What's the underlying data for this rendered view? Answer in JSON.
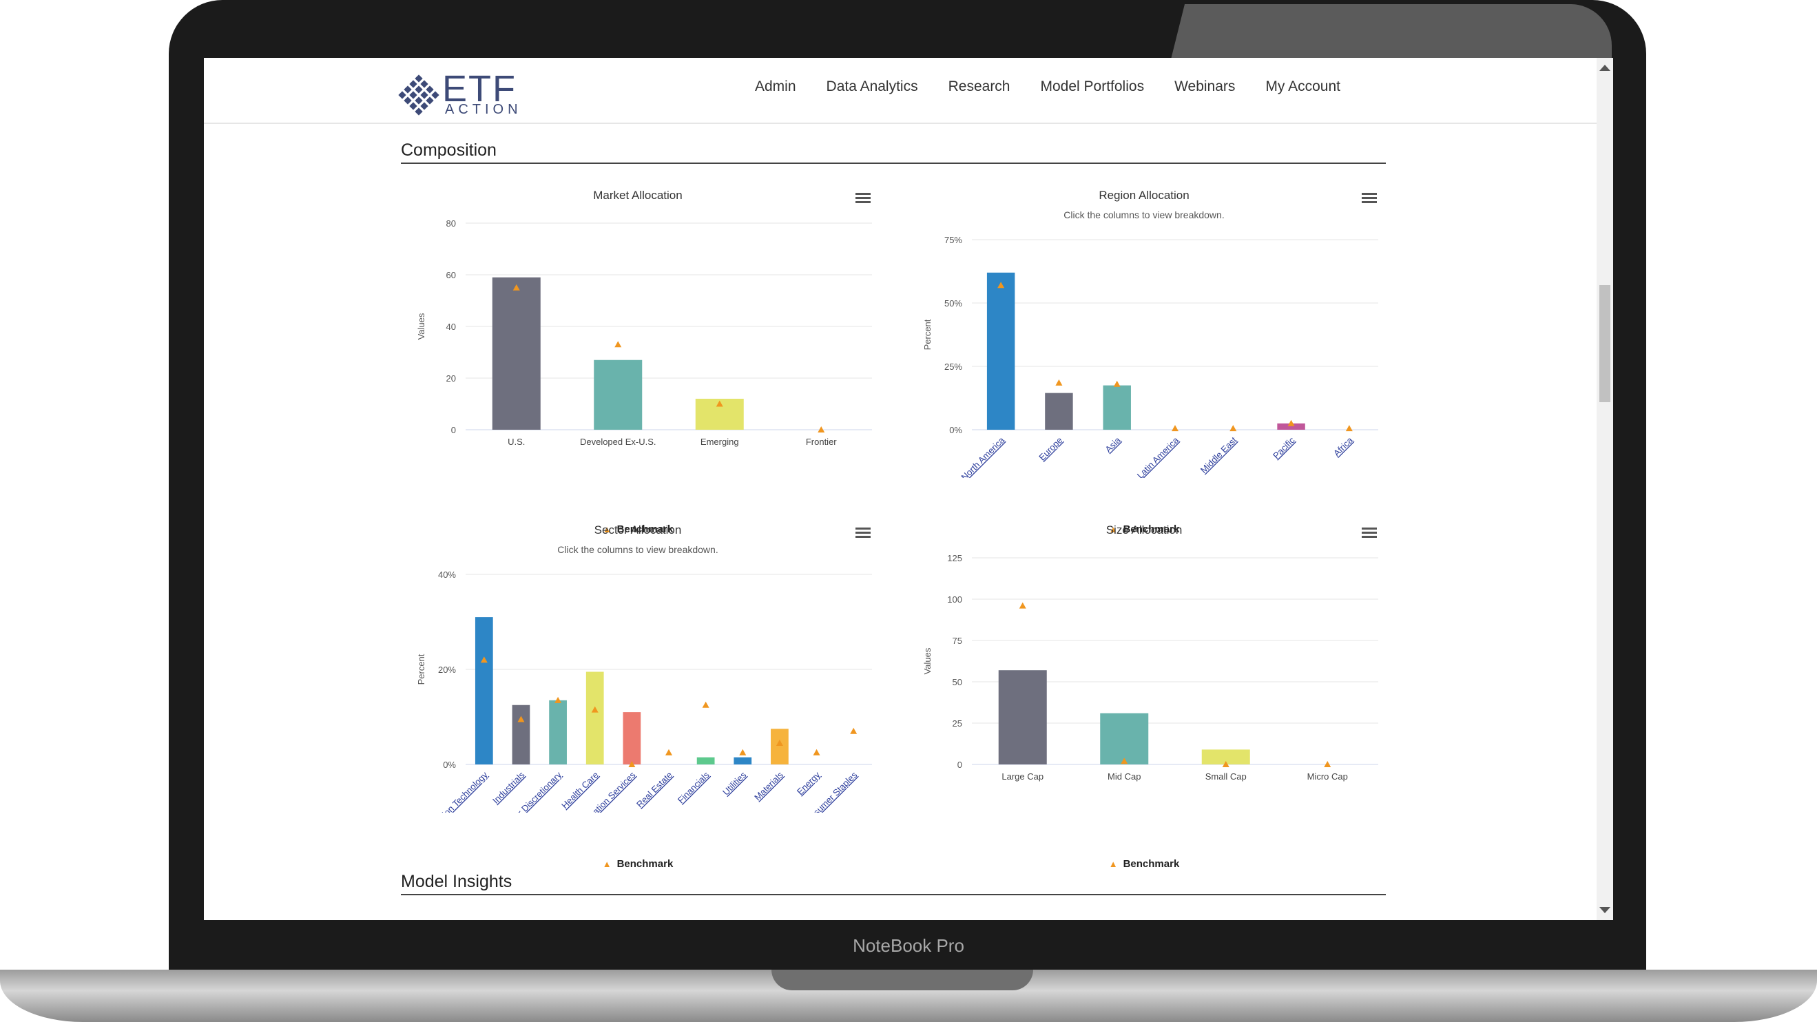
{
  "device": {
    "brand": "NoteBook Pro"
  },
  "logo": {
    "main": "ETF",
    "sub": "ACTION"
  },
  "nav": {
    "items": [
      "Admin",
      "Data Analytics",
      "Research",
      "Model Portfolios",
      "Webinars",
      "My Account"
    ]
  },
  "sections": {
    "composition": "Composition",
    "insights": "Model Insights"
  },
  "colors": {
    "benchmark": "#f0961f",
    "gray": "#6e6f7e",
    "teal": "#69b3ac",
    "yellow": "#e3e46a",
    "blue": "#2d86c6",
    "salmon": "#ec7a6f",
    "green": "#5dc98d",
    "orange": "#f6b33c",
    "pink": "#c0579a",
    "link": "#2d3e9c"
  },
  "legend_label": "Benchmark",
  "chart_data": [
    {
      "id": "market",
      "type": "bar",
      "title": "Market Allocation",
      "subtitle": "",
      "ylabel": "Values",
      "ylim": [
        0,
        80
      ],
      "yticks": [
        "0",
        "20",
        "40",
        "60",
        "80"
      ],
      "ytick_values": [
        0,
        20,
        40,
        60,
        80
      ],
      "categories": [
        "U.S.",
        "Developed Ex-U.S.",
        "Emerging",
        "Frontier"
      ],
      "values": [
        59,
        27,
        12,
        0
      ],
      "bar_colors": [
        "gray",
        "teal",
        "yellow",
        "gray"
      ],
      "benchmark": [
        55,
        33,
        10,
        0
      ],
      "rotated_labels": false
    },
    {
      "id": "region",
      "type": "bar",
      "title": "Region Allocation",
      "subtitle": "Click the columns to view breakdown.",
      "ylabel": "Percent",
      "ylim": [
        0,
        75
      ],
      "yticks": [
        "0%",
        "25%",
        "50%",
        "75%"
      ],
      "ytick_values": [
        0,
        25,
        50,
        75
      ],
      "categories": [
        "North America",
        "Europe",
        "Asia",
        "Latin America",
        "Middle East",
        "Pacific",
        "Africa"
      ],
      "values": [
        62,
        14.5,
        17.5,
        0,
        0,
        2.5,
        0
      ],
      "bar_colors": [
        "blue",
        "gray",
        "teal",
        "gray",
        "gray",
        "pink",
        "gray"
      ],
      "benchmark": [
        57,
        18.5,
        18,
        0.5,
        0.5,
        2.5,
        0.5
      ],
      "rotated_labels": true
    },
    {
      "id": "sector",
      "type": "bar",
      "title": "Sector Allocation",
      "subtitle": "Click the columns to view breakdown.",
      "ylabel": "Percent",
      "ylim": [
        0,
        40
      ],
      "yticks": [
        "0%",
        "20%",
        "40%"
      ],
      "ytick_values": [
        0,
        20,
        40
      ],
      "categories": [
        "Information Technology",
        "Industrials",
        "Consumer Discretionary",
        "Health Care",
        "Communication Services",
        "Real Estate",
        "Financials",
        "Utilities",
        "Materials",
        "Energy",
        "Consumer Staples"
      ],
      "values": [
        31,
        12.5,
        13.5,
        19.5,
        11,
        0,
        1.5,
        1.5,
        7.5,
        0,
        0
      ],
      "bar_colors": [
        "blue",
        "gray",
        "teal",
        "yellow",
        "salmon",
        "gray",
        "green",
        "blue",
        "orange",
        "gray",
        "gray"
      ],
      "benchmark": [
        22,
        9.5,
        13.5,
        11.5,
        0,
        2.5,
        12.5,
        2.5,
        4.5,
        2.5,
        7
      ],
      "rotated_labels": true
    },
    {
      "id": "size",
      "type": "bar",
      "title": "Size Allocation",
      "subtitle": "",
      "ylabel": "Values",
      "ylim": [
        0,
        125
      ],
      "yticks": [
        "0",
        "25",
        "50",
        "75",
        "100",
        "125"
      ],
      "ytick_values": [
        0,
        25,
        50,
        75,
        100,
        125
      ],
      "categories": [
        "Large Cap",
        "Mid Cap",
        "Small Cap",
        "Micro Cap"
      ],
      "values": [
        57,
        31,
        9,
        0
      ],
      "bar_colors": [
        "gray",
        "teal",
        "yellow",
        "gray"
      ],
      "benchmark": [
        96,
        2,
        0,
        0
      ],
      "rotated_labels": false
    }
  ]
}
